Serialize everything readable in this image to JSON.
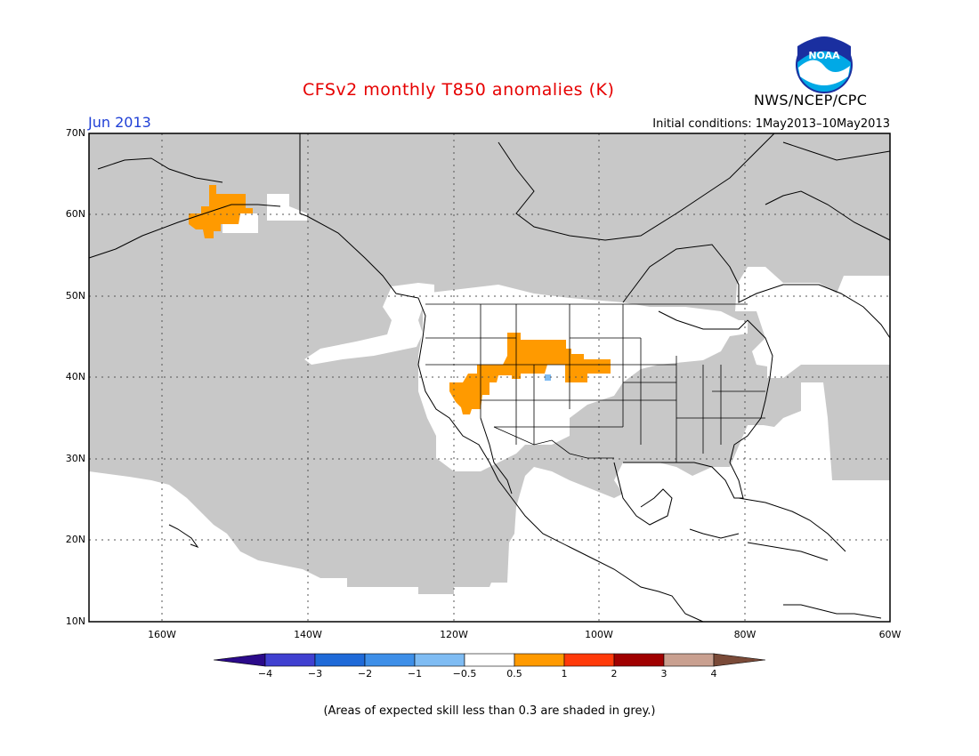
{
  "title": "CFSv2 monthly T850 anomalies (K)",
  "month_label": "Jun 2013",
  "initial_conditions": "Initial conditions: 1May2013–10May2013",
  "org_label": "NWS/NCEP/CPC",
  "logo_text": "NOAA",
  "lat_labels": [
    "70N",
    "60N",
    "50N",
    "40N",
    "30N",
    "20N",
    "10N"
  ],
  "lon_labels": [
    "160W",
    "140W",
    "120W",
    "100W",
    "80W",
    "60W"
  ],
  "colorbar": {
    "labels": [
      "−4",
      "−3",
      "−2",
      "−1",
      "−0.5",
      "0.5",
      "1",
      "2",
      "3",
      "4"
    ],
    "colors": [
      "#2b0a8a",
      "#4040d0",
      "#1f6ad8",
      "#3e8fe8",
      "#7fbcf3",
      "#ffffff",
      "#ff9a00",
      "#ff3a0a",
      "#a00000",
      "#c9a090",
      "#7a4a38"
    ]
  },
  "note": "(Areas of expected skill less than 0.3 are shaded in grey.)",
  "map_colors": {
    "low_skill": "#c8c8c8",
    "anomaly_0_5_1": "#ff9a00",
    "anomaly_neg": "#7fbcf3",
    "border": "#000000"
  }
}
